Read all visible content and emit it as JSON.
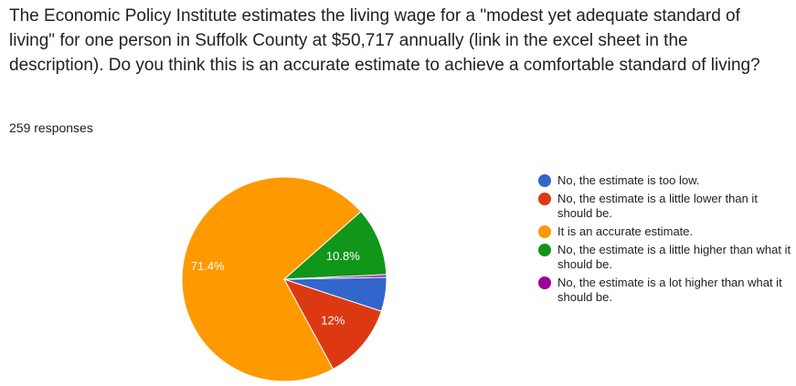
{
  "question": "The Economic Policy Institute estimates the living wage for a \"modest yet adequate standard of living\" for one person in Suffolk County at $50,717 annually (link in the excel sheet in the description). Do you think this is an accurate estimate to achieve a comfortable standard of living?",
  "responses_count": "259 responses",
  "chart_data": {
    "type": "pie",
    "labels": [
      "No, the estimate is too low.",
      "No, the estimate is a little lower than it should be.",
      "It is an accurate estimate.",
      "No, the estimate is a little higher than what it should be.",
      "No, the estimate is a lot higher than what it should be."
    ],
    "values": [
      5.4,
      12,
      71.4,
      10.8,
      0.4
    ],
    "data_labels": [
      "",
      "12%",
      "71.4%",
      "10.8%",
      ""
    ],
    "colors": [
      "#3366cc",
      "#dc3912",
      "#ff9900",
      "#109618",
      "#990099"
    ],
    "legend_position": "right"
  }
}
